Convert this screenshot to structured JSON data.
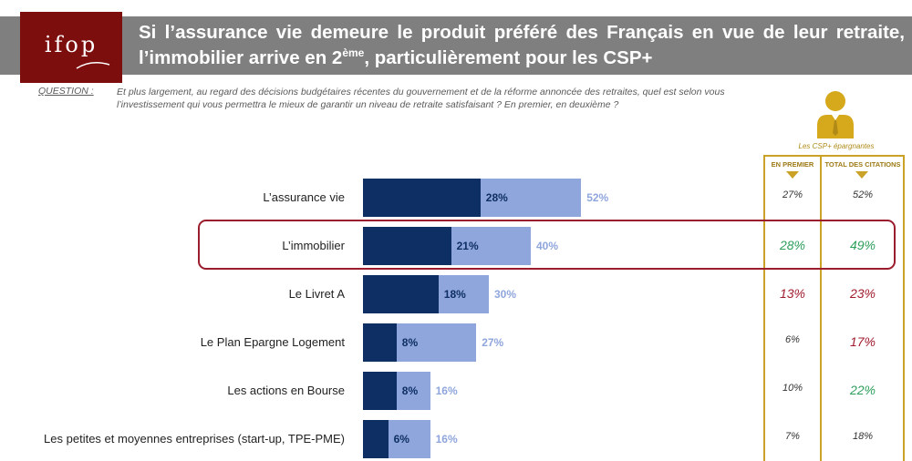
{
  "logo": {
    "text": "ifop"
  },
  "title": {
    "part1": "Si l’assurance vie demeure le produit préféré des Français en vue de leur retraite, l’immobilier arrive en 2",
    "sup": "ème",
    "part2": ", particulièrement pour les CSP+"
  },
  "question": {
    "label": "QUESTION :",
    "text": "Et plus largement, au regard des décisions budgétaires récentes du gouvernement et de la réforme annoncée des retraites, quel est selon vous l’investissement qui vous permettra le mieux de garantir un niveau de retraite satisfaisant ? En premier, en deuxième ?"
  },
  "side_panel": {
    "group_label": "Les CSP+ épargnantes",
    "col_first": "EN PREMIER",
    "col_total": "TOTAL DES CITATIONS",
    "colors": {
      "green": "#2e9e5b",
      "red": "#a01c2c",
      "neutral": "#333333"
    }
  },
  "chart_data": {
    "type": "bar",
    "orientation": "horizontal",
    "stacked_overlay": true,
    "categories": [
      "L’assurance vie",
      "L’immobilier",
      "Le Livret A",
      "Le Plan Epargne Logement",
      "Les actions en Bourse",
      "Les petites et moyennes entreprises (start-up, TPE-PME)"
    ],
    "series": [
      {
        "values": [
          28,
          21,
          18,
          8,
          8,
          6
        ],
        "labels": [
          "28%",
          "21%",
          "18%",
          "8%",
          "8%",
          "6%"
        ],
        "color": "#0e2f63"
      },
      {
        "values": [
          52,
          40,
          30,
          27,
          16,
          16
        ],
        "labels": [
          "52%",
          "40%",
          "30%",
          "27%",
          "16%",
          "16%"
        ],
        "color": "#8fa6dc"
      }
    ],
    "highlighted_category": "L’immobilier",
    "csp_plus": {
      "first": [
        "27%",
        "28%",
        "13%",
        "6%",
        "10%",
        "7%"
      ],
      "total": [
        "52%",
        "49%",
        "23%",
        "17%",
        "22%",
        "18%"
      ],
      "first_style": [
        "neutral",
        "green",
        "red",
        "neutral",
        "neutral",
        "neutral"
      ],
      "total_style": [
        "neutral",
        "green",
        "red",
        "red",
        "green",
        "neutral"
      ]
    },
    "xlim": [
      0,
      100
    ]
  }
}
